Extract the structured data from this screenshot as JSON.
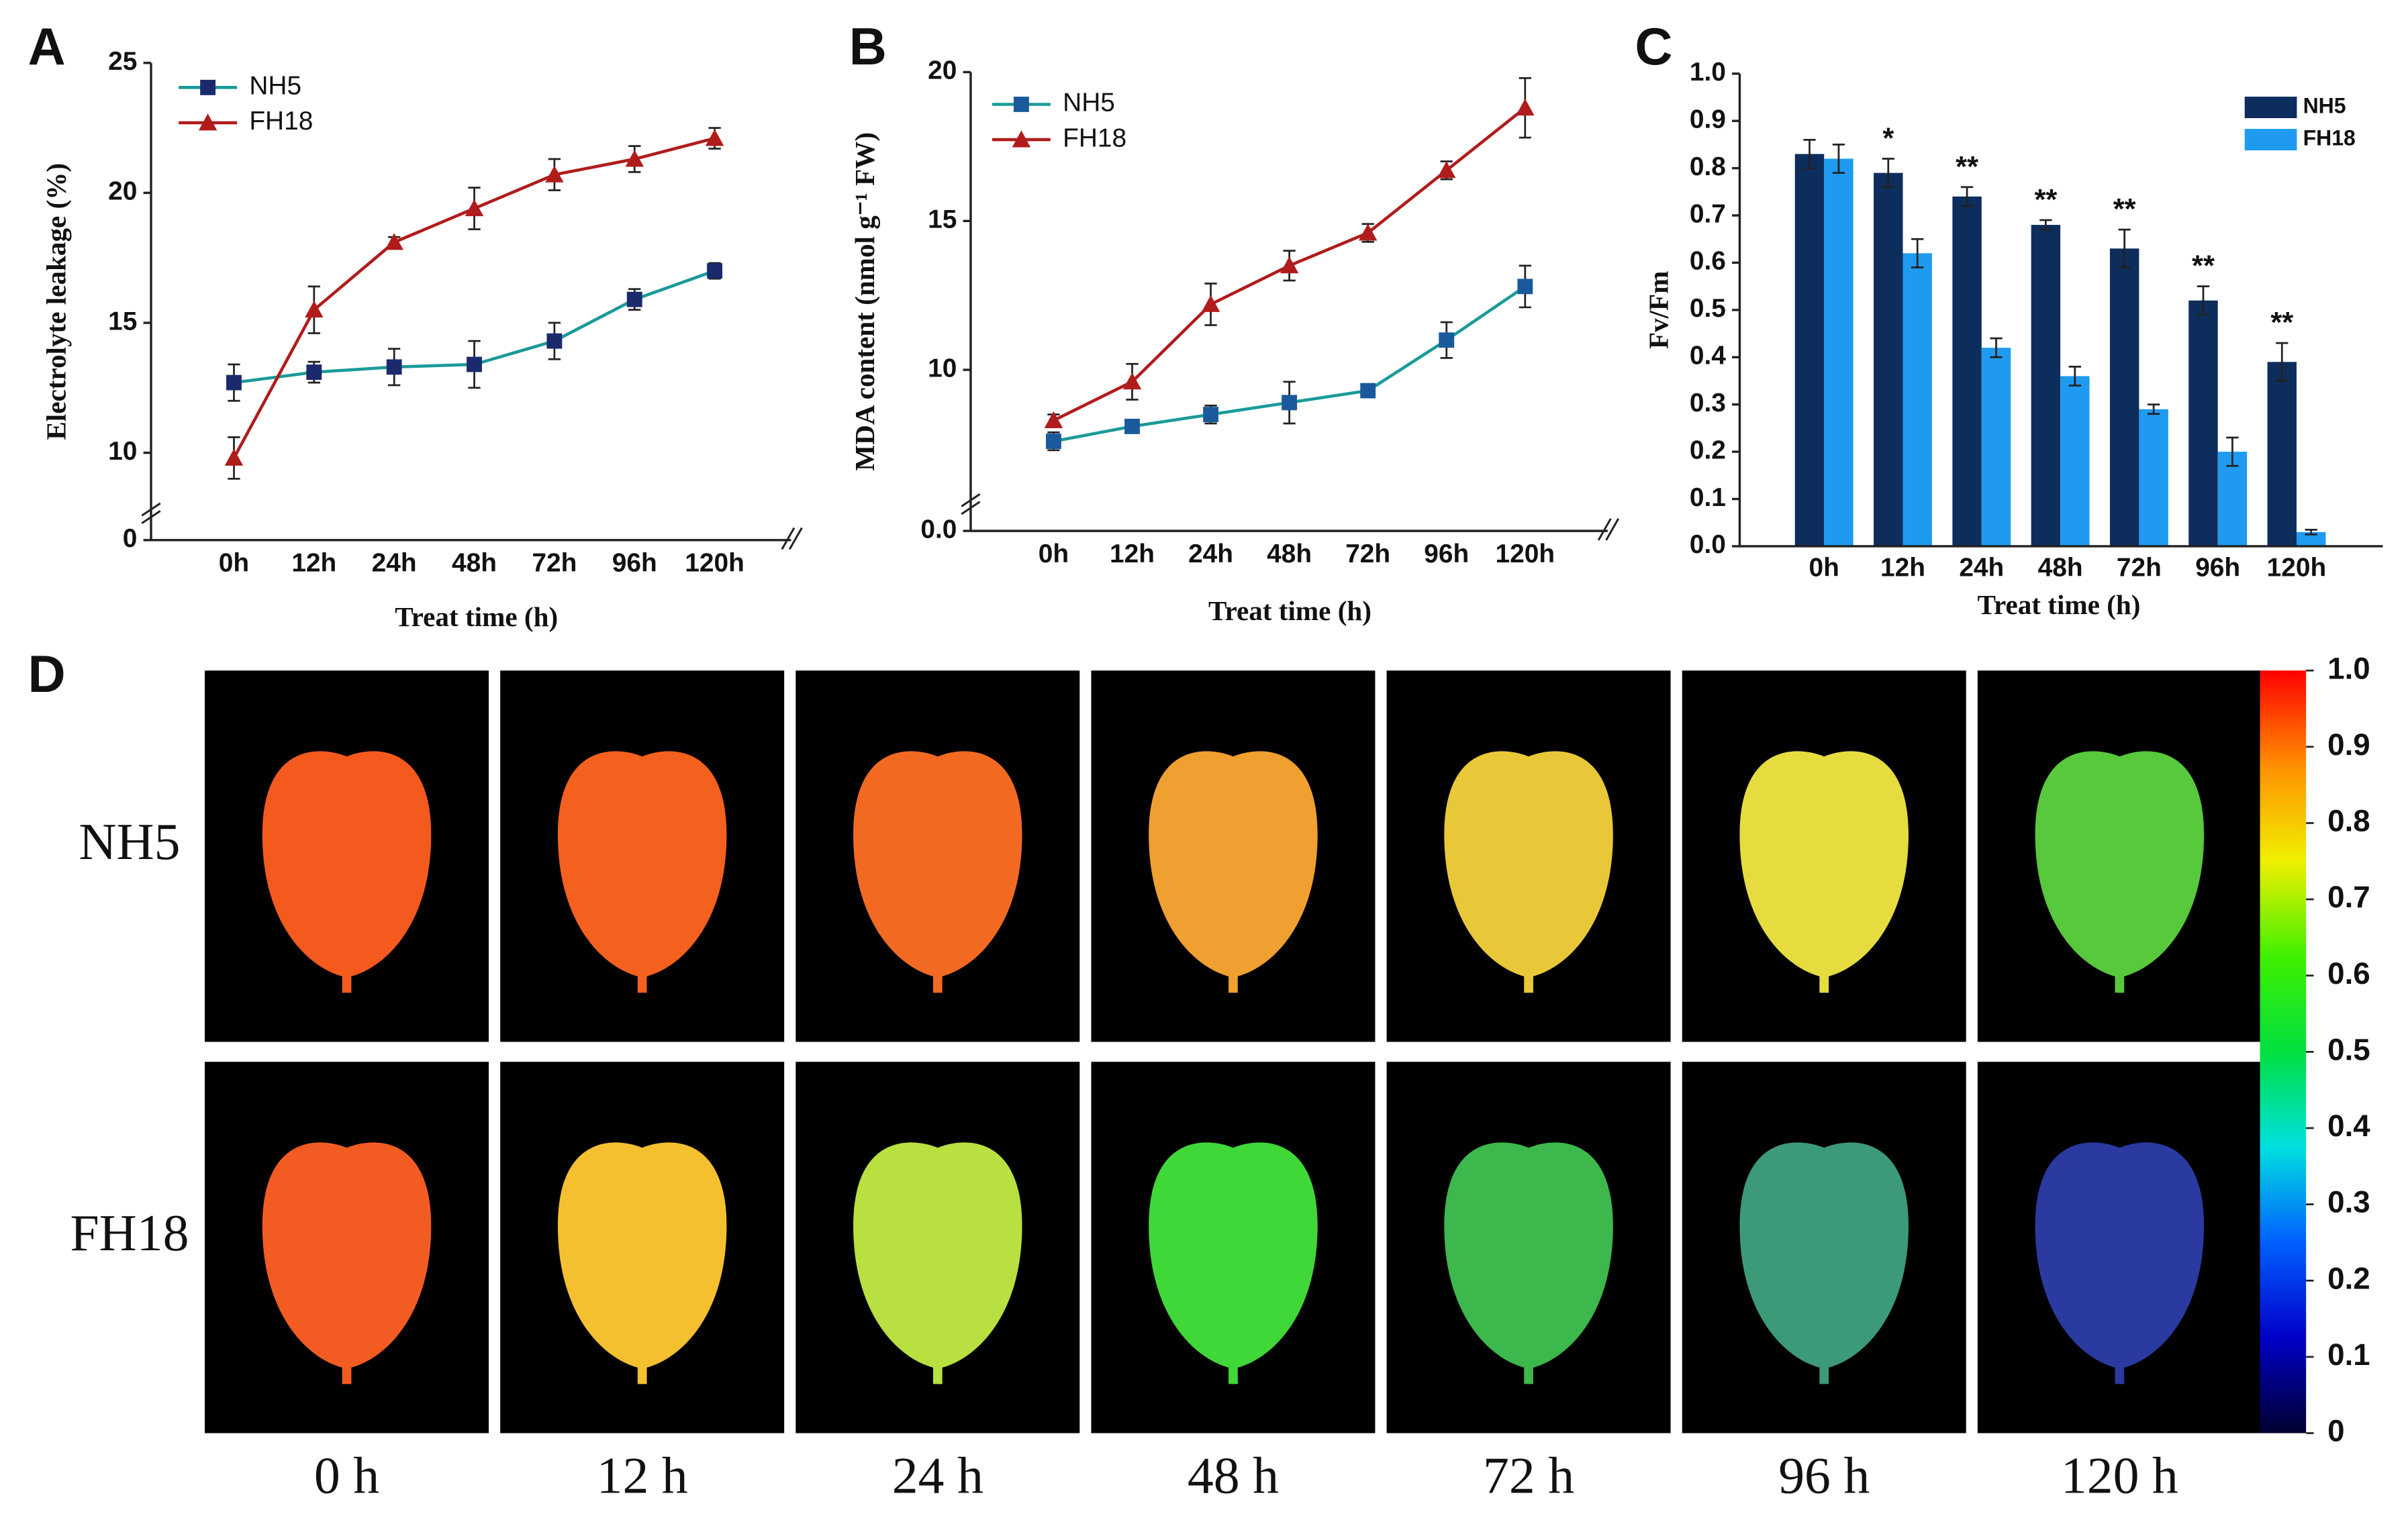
{
  "chart_data": [
    {
      "type": "line",
      "panel": "A",
      "ylabel": "Electrolyte leakage (%)",
      "xlabel": "Treat time (h)",
      "categories": [
        "0h",
        "12h",
        "24h",
        "48h",
        "72h",
        "96h",
        "120h"
      ],
      "ylim": [
        0,
        25
      ],
      "axis_break": [
        0,
        6.64
      ],
      "yticks": [
        0,
        10,
        15,
        20,
        25
      ],
      "series": [
        {
          "name": "NH5",
          "color": "#1a9a9a",
          "marker_color": "#1a2a6c",
          "marker": "square",
          "values": [
            12.7,
            13.1,
            13.3,
            13.4,
            14.3,
            15.9,
            17.0
          ],
          "errors": [
            0.7,
            0.4,
            0.7,
            0.9,
            0.7,
            0.4,
            0.3
          ]
        },
        {
          "name": "FH18",
          "color": "#b01c1c",
          "marker_color": "#b01c1c",
          "marker": "triangle",
          "values": [
            9.8,
            15.5,
            18.1,
            19.4,
            20.7,
            21.3,
            22.1
          ],
          "errors": [
            0.8,
            0.9,
            0.2,
            0.8,
            0.6,
            0.5,
            0.4
          ]
        }
      ]
    },
    {
      "type": "line",
      "panel": "B",
      "ylabel": "MDA content (nmol g⁻¹ FW)",
      "xlabel": "Treat time (h)",
      "categories": [
        "0h",
        "12h",
        "24h",
        "48h",
        "72h",
        "96h",
        "120h"
      ],
      "ylim": [
        0,
        20
      ],
      "axis_break": [
        0,
        4.59
      ],
      "yticks": [
        {
          "value": 0,
          "label": "0.0"
        },
        10,
        15,
        20
      ],
      "series": [
        {
          "name": "NH5",
          "color": "#1a9a9a",
          "marker_color": "#1a5a9c",
          "marker": "square",
          "values": [
            7.6,
            8.1,
            8.5,
            8.9,
            9.3,
            11.0,
            12.8
          ],
          "errors": [
            0.3,
            0.15,
            0.3,
            0.7,
            0.2,
            0.6,
            0.7
          ]
        },
        {
          "name": "FH18",
          "color": "#b01c1c",
          "marker_color": "#b01c1c",
          "marker": "triangle",
          "values": [
            8.3,
            9.6,
            12.2,
            13.5,
            14.6,
            16.7,
            18.8
          ],
          "errors": [
            0.2,
            0.6,
            0.7,
            0.5,
            0.3,
            0.3,
            1.0
          ]
        }
      ]
    },
    {
      "type": "bar",
      "panel": "C",
      "ylabel": "Fv/Fm",
      "xlabel": "Treat time (h)",
      "categories": [
        "0h",
        "12h",
        "24h",
        "48h",
        "72h",
        "96h",
        "120h"
      ],
      "ylim": [
        0,
        1
      ],
      "yticks": [
        {
          "value": 0,
          "label": "0.0"
        },
        0.1,
        0.2,
        0.3,
        0.4,
        0.5,
        0.6,
        0.7,
        0.8,
        0.9,
        {
          "value": 1,
          "label": "1.0"
        }
      ],
      "series": [
        {
          "name": "NH5",
          "color": "#0d2d5c",
          "values": [
            0.83,
            0.79,
            0.74,
            0.68,
            0.63,
            0.52,
            0.39
          ],
          "errors": [
            0.03,
            0.03,
            0.02,
            0.01,
            0.04,
            0.03,
            0.04
          ]
        },
        {
          "name": "FH18",
          "color": "#1e9bf0",
          "values": [
            0.82,
            0.62,
            0.42,
            0.36,
            0.29,
            0.2,
            0.03
          ],
          "errors": [
            0.03,
            0.03,
            0.02,
            0.02,
            0.01,
            0.03,
            0.005
          ]
        }
      ],
      "annotations": [
        {
          "category": 1,
          "text": "*"
        },
        {
          "category": 2,
          "text": "**"
        },
        {
          "category": 3,
          "text": "**"
        },
        {
          "category": 4,
          "text": "**"
        },
        {
          "category": 5,
          "text": "**"
        },
        {
          "category": 6,
          "text": "**"
        }
      ]
    },
    {
      "type": "image-grid",
      "panel": "D",
      "rows": [
        "NH5",
        "FH18"
      ],
      "columns": [
        "0 h",
        "12 h",
        "24 h",
        "48 h",
        "72 h",
        "96 h",
        "120 h"
      ],
      "leaf_colors": [
        [
          "#f45a1e",
          "#f4601e",
          "#f26a22",
          "#f0a030",
          "#e8c838",
          "#e6dc40",
          "#58c83c"
        ],
        [
          "#f25c22",
          "#f4c030",
          "#b8e040",
          "#40d838",
          "#3cb84c",
          "#3c9a78",
          "#2a3aa0"
        ]
      ],
      "colorscale": [
        "#000030",
        "#0000c8",
        "#0060ff",
        "#00e0e0",
        "#00e040",
        "#40f000",
        "#f0f000",
        "#ff9000",
        "#ff0000"
      ],
      "clim": [
        0,
        1
      ],
      "cticks": [
        {
          "value": 1,
          "label": "1.0"
        },
        0.9,
        0.8,
        0.7,
        0.6,
        0.5,
        0.4,
        0.3,
        0.2,
        0.1,
        0
      ]
    }
  ]
}
